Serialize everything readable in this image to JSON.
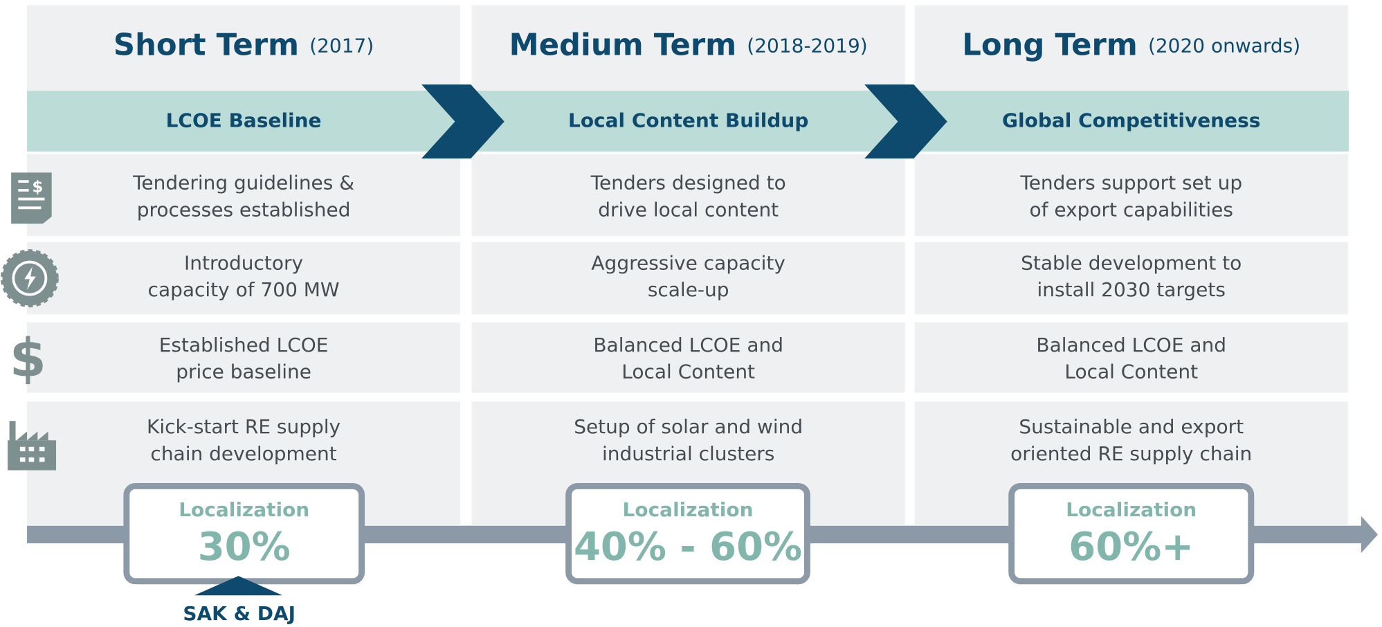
{
  "columns": [
    {
      "title": "Short Term",
      "period": "(2017)",
      "phase": "LCOE Baseline",
      "rows": [
        [
          "Tendering guidelines &",
          "processes established"
        ],
        [
          "Introductory",
          "capacity of 700 MW"
        ],
        [
          "Established LCOE",
          "price baseline"
        ],
        [
          "Kick-start RE supply",
          "chain development"
        ]
      ],
      "localization_label": "Localization",
      "localization_value": "30%"
    },
    {
      "title": "Medium Term",
      "period": "(2018-2019)",
      "phase": "Local Content Buildup",
      "rows": [
        [
          "Tenders designed to",
          "drive local content"
        ],
        [
          "Aggressive capacity",
          "scale-up"
        ],
        [
          "Balanced LCOE and",
          "Local Content"
        ],
        [
          "Setup of solar and wind",
          "industrial clusters"
        ]
      ],
      "localization_label": "Localization",
      "localization_value": "40% - 60%"
    },
    {
      "title": "Long Term",
      "period": "(2020 onwards)",
      "phase": "Global Competitiveness",
      "rows": [
        [
          "Tenders support set up",
          "of export capabilities"
        ],
        [
          "Stable development to",
          "install 2030 targets"
        ],
        [
          "Balanced LCOE and",
          "Local Content"
        ],
        [
          "Sustainable and export",
          "oriented RE supply chain"
        ]
      ],
      "localization_label": "Localization",
      "localization_value": "60%+"
    }
  ],
  "annotation": "SAK & DAJ"
}
